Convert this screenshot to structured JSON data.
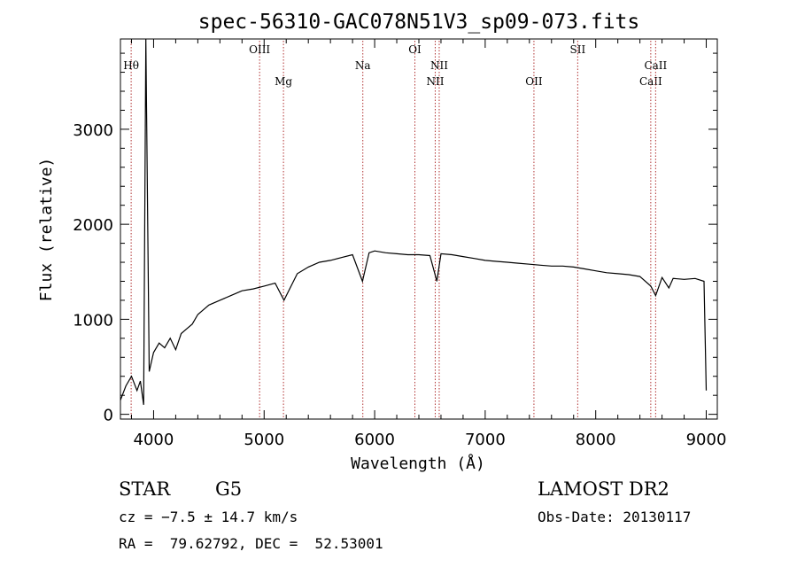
{
  "chart_data": {
    "type": "line",
    "title": "spec-56310-GAC078N51V3_sp09-073.fits",
    "xlabel": "Wavelength (Å)",
    "ylabel": "Flux (relative)",
    "xlim": [
      3700,
      9100
    ],
    "ylim": [
      -50,
      3950
    ],
    "xticks": [
      4000,
      5000,
      6000,
      7000,
      8000,
      9000
    ],
    "xtick_labels": [
      "4000",
      "5000",
      "6000",
      "7000",
      "8000",
      "9000"
    ],
    "yticks": [
      0,
      1000,
      2000,
      3000
    ],
    "ytick_labels": [
      "0",
      "1000",
      "2000",
      "3000"
    ],
    "grid": false,
    "series": [
      {
        "x": [
          3700,
          3750,
          3800,
          3850,
          3880,
          3910,
          3930,
          3960,
          4000,
          4050,
          4100,
          4150,
          4200,
          4250,
          4300,
          4350,
          4400,
          4450,
          4500,
          4600,
          4700,
          4800,
          4900,
          5000,
          5100,
          5180,
          5300,
          5400,
          5500,
          5600,
          5700,
          5800,
          5890,
          5950,
          6000,
          6100,
          6200,
          6300,
          6400,
          6500,
          6563,
          6600,
          6700,
          6800,
          6900,
          7000,
          7100,
          7200,
          7300,
          7400,
          7500,
          7600,
          7700,
          7800,
          7900,
          8000,
          8100,
          8200,
          8300,
          8400,
          8498,
          8542,
          8600,
          8662,
          8700,
          8800,
          8900,
          8980,
          9000
        ],
        "y": [
          150,
          300,
          400,
          250,
          350,
          100,
          3950,
          450,
          650,
          750,
          700,
          800,
          680,
          850,
          900,
          950,
          1050,
          1100,
          1150,
          1200,
          1250,
          1300,
          1320,
          1350,
          1380,
          1200,
          1480,
          1550,
          1600,
          1620,
          1650,
          1680,
          1400,
          1700,
          1720,
          1700,
          1690,
          1680,
          1680,
          1670,
          1400,
          1690,
          1680,
          1660,
          1640,
          1620,
          1610,
          1600,
          1590,
          1580,
          1570,
          1560,
          1560,
          1550,
          1530,
          1510,
          1490,
          1480,
          1470,
          1450,
          1350,
          1250,
          1440,
          1330,
          1430,
          1420,
          1430,
          1400,
          250
        ]
      }
    ],
    "line_marks": [
      {
        "label": "Hθ",
        "x": 3797,
        "row": 1
      },
      {
        "label": "OIII",
        "x": 4959,
        "row": 0
      },
      {
        "label": "Mg",
        "x": 5175,
        "row": 2
      },
      {
        "label": "Na",
        "x": 5893,
        "row": 1
      },
      {
        "label": "OI",
        "x": 6364,
        "row": 0
      },
      {
        "label": "NII",
        "x": 6548,
        "row": 2
      },
      {
        "label": "NII",
        "x": 6584,
        "row": 1
      },
      {
        "label": "OII",
        "x": 7441,
        "row": 2
      },
      {
        "label": "SII",
        "x": 7837,
        "row": 0
      },
      {
        "label": "CaII",
        "x": 8498,
        "row": 2
      },
      {
        "label": "CaII",
        "x": 8542,
        "row": 1
      }
    ],
    "line_color": "#b03030"
  },
  "info": {
    "object_class": "STAR",
    "subclass": "G5",
    "survey": "LAMOST DR2",
    "cz": "cz = −7.5 ± 14.7 km/s",
    "obs_date": "Obs-Date: 20130117",
    "coords": "RA =  79.62792, DEC =  52.53001"
  }
}
